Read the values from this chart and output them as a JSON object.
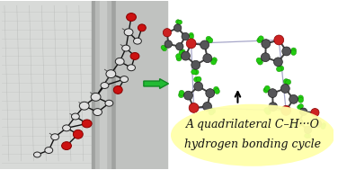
{
  "title_line1": "A quadrilateral C–H···O",
  "title_line2": "hydrogen bonding cycle",
  "bg_color": "#ffffff",
  "yellow_bg": "#ffffaa",
  "text_color": "#111111",
  "fig_width": 3.76,
  "fig_height": 1.89,
  "dpi": 100,
  "font_size_title": 9.0,
  "left_bg": "#c8cac8",
  "stair_color": "#a0a2a0",
  "column_color": "#888a88",
  "bond_color": "#111111",
  "C_face": "#e0e0e0",
  "O_face": "#cc1111",
  "green_arrow": "#22bb33",
  "mol_bond": "#404040",
  "mol_C": "#555558",
  "mol_O": "#cc2222",
  "mol_H": "#22cc11",
  "hbond_color": "#9090bb"
}
